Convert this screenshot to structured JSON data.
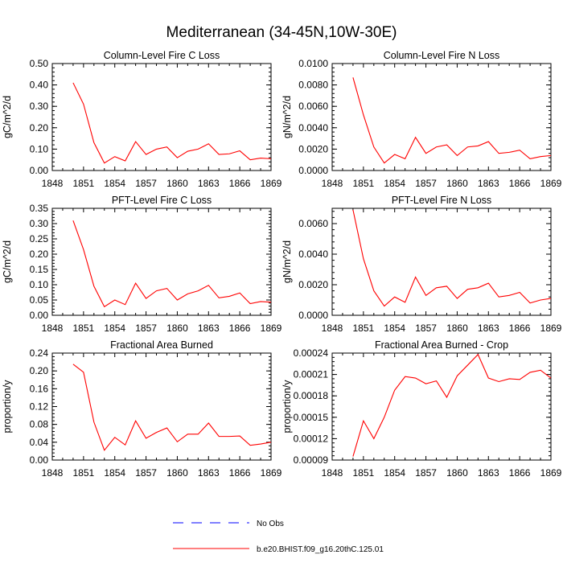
{
  "figure": {
    "title": "Mediterranean (34-45N,10W-30E)"
  },
  "legend": {
    "items": [
      {
        "label": "No Obs",
        "color": "#0000ff",
        "dash": true
      },
      {
        "label": "b.e20.BHIST.f09_g16.20thC.125.01",
        "color": "#ff0000",
        "dash": false
      }
    ]
  },
  "chart_data": [
    {
      "type": "line",
      "title": "Column-Level Fire C Loss",
      "ylabel": "gC/m^2/d",
      "xlim": [
        1848,
        1869
      ],
      "ylim": [
        0,
        0.5
      ],
      "xticks": [
        "1848",
        "1851",
        "1854",
        "1857",
        "1860",
        "1863",
        "1866",
        "1869"
      ],
      "yticks": [
        "0.00",
        "0.10",
        "0.20",
        "0.30",
        "0.40",
        "0.50"
      ],
      "series": [
        {
          "name": "b.e20.BHIST.f09_g16.20thC.125.01",
          "color": "#ff0000",
          "x": [
            1850,
            1851,
            1852,
            1853,
            1854,
            1855,
            1856,
            1857,
            1858,
            1859,
            1860,
            1861,
            1862,
            1863,
            1864,
            1865,
            1866,
            1867,
            1868,
            1869
          ],
          "y": [
            0.41,
            0.31,
            0.13,
            0.035,
            0.065,
            0.045,
            0.135,
            0.075,
            0.1,
            0.11,
            0.06,
            0.09,
            0.1,
            0.125,
            0.075,
            0.078,
            0.092,
            0.05,
            0.058,
            0.055
          ]
        }
      ]
    },
    {
      "type": "line",
      "title": "Column-Level Fire N Loss",
      "ylabel": "gN/m^2/d",
      "xlim": [
        1848,
        1869
      ],
      "ylim": [
        0,
        0.01
      ],
      "xticks": [
        "1848",
        "1851",
        "1854",
        "1857",
        "1860",
        "1863",
        "1866",
        "1869"
      ],
      "yticks": [
        "0.0000",
        "0.0020",
        "0.0040",
        "0.0060",
        "0.0080",
        "0.0100"
      ],
      "series": [
        {
          "name": "b.e20.BHIST.f09_g16.20thC.125.01",
          "color": "#ff0000",
          "x": [
            1850,
            1851,
            1852,
            1853,
            1854,
            1855,
            1856,
            1857,
            1858,
            1859,
            1860,
            1861,
            1862,
            1863,
            1864,
            1865,
            1866,
            1867,
            1868,
            1869
          ],
          "y": [
            0.0087,
            0.0052,
            0.0022,
            0.0007,
            0.0015,
            0.0011,
            0.0031,
            0.0016,
            0.0022,
            0.0024,
            0.0014,
            0.0022,
            0.0023,
            0.0027,
            0.0016,
            0.0017,
            0.0019,
            0.0011,
            0.0013,
            0.0014
          ]
        }
      ]
    },
    {
      "type": "line",
      "title": "PFT-Level Fire C Loss",
      "ylabel": "gC/m^2/d",
      "xlim": [
        1848,
        1869
      ],
      "ylim": [
        0,
        0.35
      ],
      "xticks": [
        "1848",
        "1851",
        "1854",
        "1857",
        "1860",
        "1863",
        "1866",
        "1869"
      ],
      "yticks": [
        "0.00",
        "0.05",
        "0.10",
        "0.15",
        "0.20",
        "0.25",
        "0.30",
        "0.35"
      ],
      "series": [
        {
          "name": "b.e20.BHIST.f09_g16.20thC.125.01",
          "color": "#ff0000",
          "x": [
            1850,
            1851,
            1852,
            1853,
            1854,
            1855,
            1856,
            1857,
            1858,
            1859,
            1860,
            1861,
            1862,
            1863,
            1864,
            1865,
            1866,
            1867,
            1868,
            1869
          ],
          "y": [
            0.31,
            0.215,
            0.095,
            0.028,
            0.05,
            0.035,
            0.105,
            0.055,
            0.08,
            0.088,
            0.05,
            0.07,
            0.08,
            0.098,
            0.057,
            0.062,
            0.073,
            0.038,
            0.045,
            0.043
          ]
        }
      ]
    },
    {
      "type": "line",
      "title": "PFT-Level Fire N Loss",
      "ylabel": "gN/m^2/d",
      "xlim": [
        1848,
        1869
      ],
      "ylim": [
        0,
        0.007
      ],
      "xticks": [
        "1848",
        "1851",
        "1854",
        "1857",
        "1860",
        "1863",
        "1866",
        "1869"
      ],
      "yticks": [
        "0.0000",
        "0.0020",
        "0.0040",
        "0.0060"
      ],
      "ytick_values": [
        0,
        0.002,
        0.004,
        0.006
      ],
      "series": [
        {
          "name": "b.e20.BHIST.f09_g16.20thC.125.01",
          "color": "#ff0000",
          "x": [
            1850,
            1851,
            1852,
            1853,
            1854,
            1855,
            1856,
            1857,
            1858,
            1859,
            1860,
            1861,
            1862,
            1863,
            1864,
            1865,
            1866,
            1867,
            1868,
            1869
          ],
          "y": [
            0.0069,
            0.0037,
            0.0016,
            0.0006,
            0.0012,
            0.00085,
            0.0025,
            0.0013,
            0.0018,
            0.0019,
            0.0011,
            0.0017,
            0.0018,
            0.0021,
            0.0012,
            0.0013,
            0.0015,
            0.0008,
            0.001,
            0.0011
          ]
        }
      ]
    },
    {
      "type": "line",
      "title": "Fractional Area Burned",
      "ylabel": "proportion/y",
      "xlim": [
        1848,
        1869
      ],
      "ylim": [
        0,
        0.24
      ],
      "xticks": [
        "1848",
        "1851",
        "1854",
        "1857",
        "1860",
        "1863",
        "1866",
        "1869"
      ],
      "yticks": [
        "0.00",
        "0.04",
        "0.08",
        "0.12",
        "0.16",
        "0.20",
        "0.24"
      ],
      "series": [
        {
          "name": "b.e20.BHIST.f09_g16.20thC.125.01",
          "color": "#ff0000",
          "x": [
            1850,
            1851,
            1852,
            1853,
            1854,
            1855,
            1856,
            1857,
            1858,
            1859,
            1860,
            1861,
            1862,
            1863,
            1864,
            1865,
            1866,
            1867,
            1868,
            1869
          ],
          "y": [
            0.215,
            0.197,
            0.085,
            0.022,
            0.051,
            0.034,
            0.088,
            0.049,
            0.062,
            0.072,
            0.041,
            0.058,
            0.058,
            0.083,
            0.053,
            0.053,
            0.054,
            0.033,
            0.036,
            0.04
          ]
        }
      ]
    },
    {
      "type": "line",
      "title": "Fractional Area Burned - Crop",
      "ylabel": "proportion/y",
      "xlim": [
        1848,
        1869
      ],
      "ylim": [
        9e-05,
        0.00024
      ],
      "xticks": [
        "1848",
        "1851",
        "1854",
        "1857",
        "1860",
        "1863",
        "1866",
        "1869"
      ],
      "yticks": [
        "0.00009",
        "0.00012",
        "0.00015",
        "0.00018",
        "0.00021",
        "0.00024"
      ],
      "series": [
        {
          "name": "b.e20.BHIST.f09_g16.20thC.125.01",
          "color": "#ff0000",
          "x": [
            1850,
            1851,
            1852,
            1853,
            1854,
            1855,
            1856,
            1857,
            1858,
            1859,
            1860,
            1861,
            1862,
            1863,
            1864,
            1865,
            1866,
            1867,
            1868,
            1869
          ],
          "y": [
            9.5e-05,
            0.000145,
            0.00012,
            0.00015,
            0.000188,
            0.000207,
            0.000205,
            0.000197,
            0.000201,
            0.000178,
            0.000208,
            0.000223,
            0.000238,
            0.000205,
            0.0002,
            0.000204,
            0.000203,
            0.000213,
            0.000216,
            0.000205
          ]
        }
      ]
    }
  ]
}
